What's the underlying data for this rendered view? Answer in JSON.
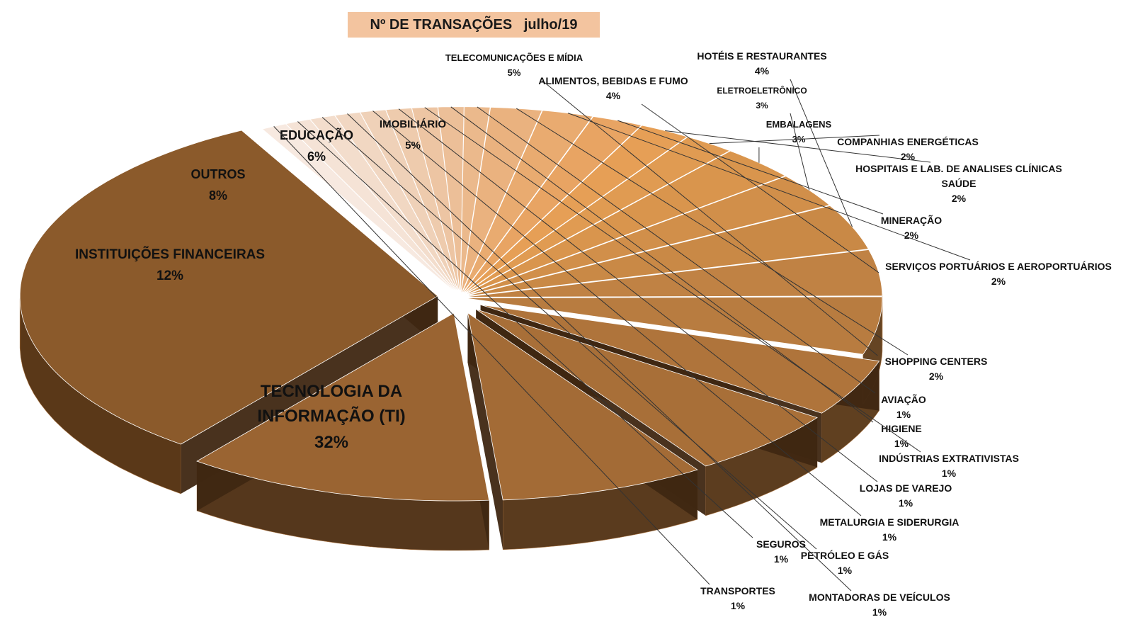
{
  "chart_data": {
    "type": "pie",
    "title": "Nº DE TRANSAÇÕES   julho/19",
    "slices": [
      {
        "label": "TECNOLOGIA DA INFORMAÇÃO (TI)",
        "value": 32,
        "value_label": "32%",
        "color": "#8b5a2b"
      },
      {
        "label": "INSTITUIÇÕES FINANCEIRAS",
        "value": 12,
        "value_label": "12%",
        "color": "#9a6432"
      },
      {
        "label": "OUTROS",
        "value": 8,
        "value_label": "8%",
        "color": "#a36b36"
      },
      {
        "label": "EDUCAÇÃO",
        "value": 6,
        "value_label": "6%",
        "color": "#a86f38"
      },
      {
        "label": "IMOBILIÁRIO",
        "value": 5,
        "value_label": "5%",
        "color": "#af743b"
      },
      {
        "label": "TELECOMUNICAÇÕES E MÍDIA",
        "value": 5,
        "value_label": "5%",
        "color": "#b87c40"
      },
      {
        "label": "ALIMENTOS, BEBIDAS E FUMO",
        "value": 4,
        "value_label": "4%",
        "color": "#c08244"
      },
      {
        "label": "HOTÉIS E RESTAURANTES",
        "value": 4,
        "value_label": "4%",
        "color": "#c98946"
      },
      {
        "label": "ELETROELETRÔNICO",
        "value": 3,
        "value_label": "3%",
        "color": "#d18f4a"
      },
      {
        "label": "EMBALAGENS",
        "value": 3,
        "value_label": "3%",
        "color": "#d9954d"
      },
      {
        "label": "COMPANHIAS ENERGÉTICAS",
        "value": 2,
        "value_label": "2%",
        "color": "#e09b52"
      },
      {
        "label": "HOSPITAIS E LAB. DE ANALISES CLÍNICAS SAÚDE",
        "value": 2,
        "value_label": "2%",
        "color": "#e69f56"
      },
      {
        "label": "MINERAÇÃO",
        "value": 2,
        "value_label": "2%",
        "color": "#e8a463"
      },
      {
        "label": "SERVIÇOS PORTUÁRIOS E AEROPORTUÁRIOS",
        "value": 2,
        "value_label": "2%",
        "color": "#e9ab70"
      },
      {
        "label": "SHOPPING CENTERS",
        "value": 2,
        "value_label": "2%",
        "color": "#eab27f"
      },
      {
        "label": "AVIAÇÃO",
        "value": 1,
        "value_label": "1%",
        "color": "#ebb98c"
      },
      {
        "label": "HIGIENE",
        "value": 1,
        "value_label": "1%",
        "color": "#ecbf98"
      },
      {
        "label": "INDÚSTRIAS EXTRATIVISTAS",
        "value": 1,
        "value_label": "1%",
        "color": "#edc5a3"
      },
      {
        "label": "LOJAS DE VAREJO",
        "value": 1,
        "value_label": "1%",
        "color": "#eecbad"
      },
      {
        "label": "METALURGIA E SIDERURGIA",
        "value": 1,
        "value_label": "1%",
        "color": "#efd1b8"
      },
      {
        "label": "MONTADORAS DE VEÍCULOS",
        "value": 1,
        "value_label": "1%",
        "color": "#f1d7c2"
      },
      {
        "label": "PETRÓLEO E GÁS",
        "value": 1,
        "value_label": "1%",
        "color": "#f3ddcc"
      },
      {
        "label": "SEGUROS",
        "value": 1,
        "value_label": "1%",
        "color": "#f5e3d6"
      },
      {
        "label": "TRANSPORTES",
        "value": 1,
        "value_label": "1%",
        "color": "#f7e9e0"
      }
    ]
  }
}
